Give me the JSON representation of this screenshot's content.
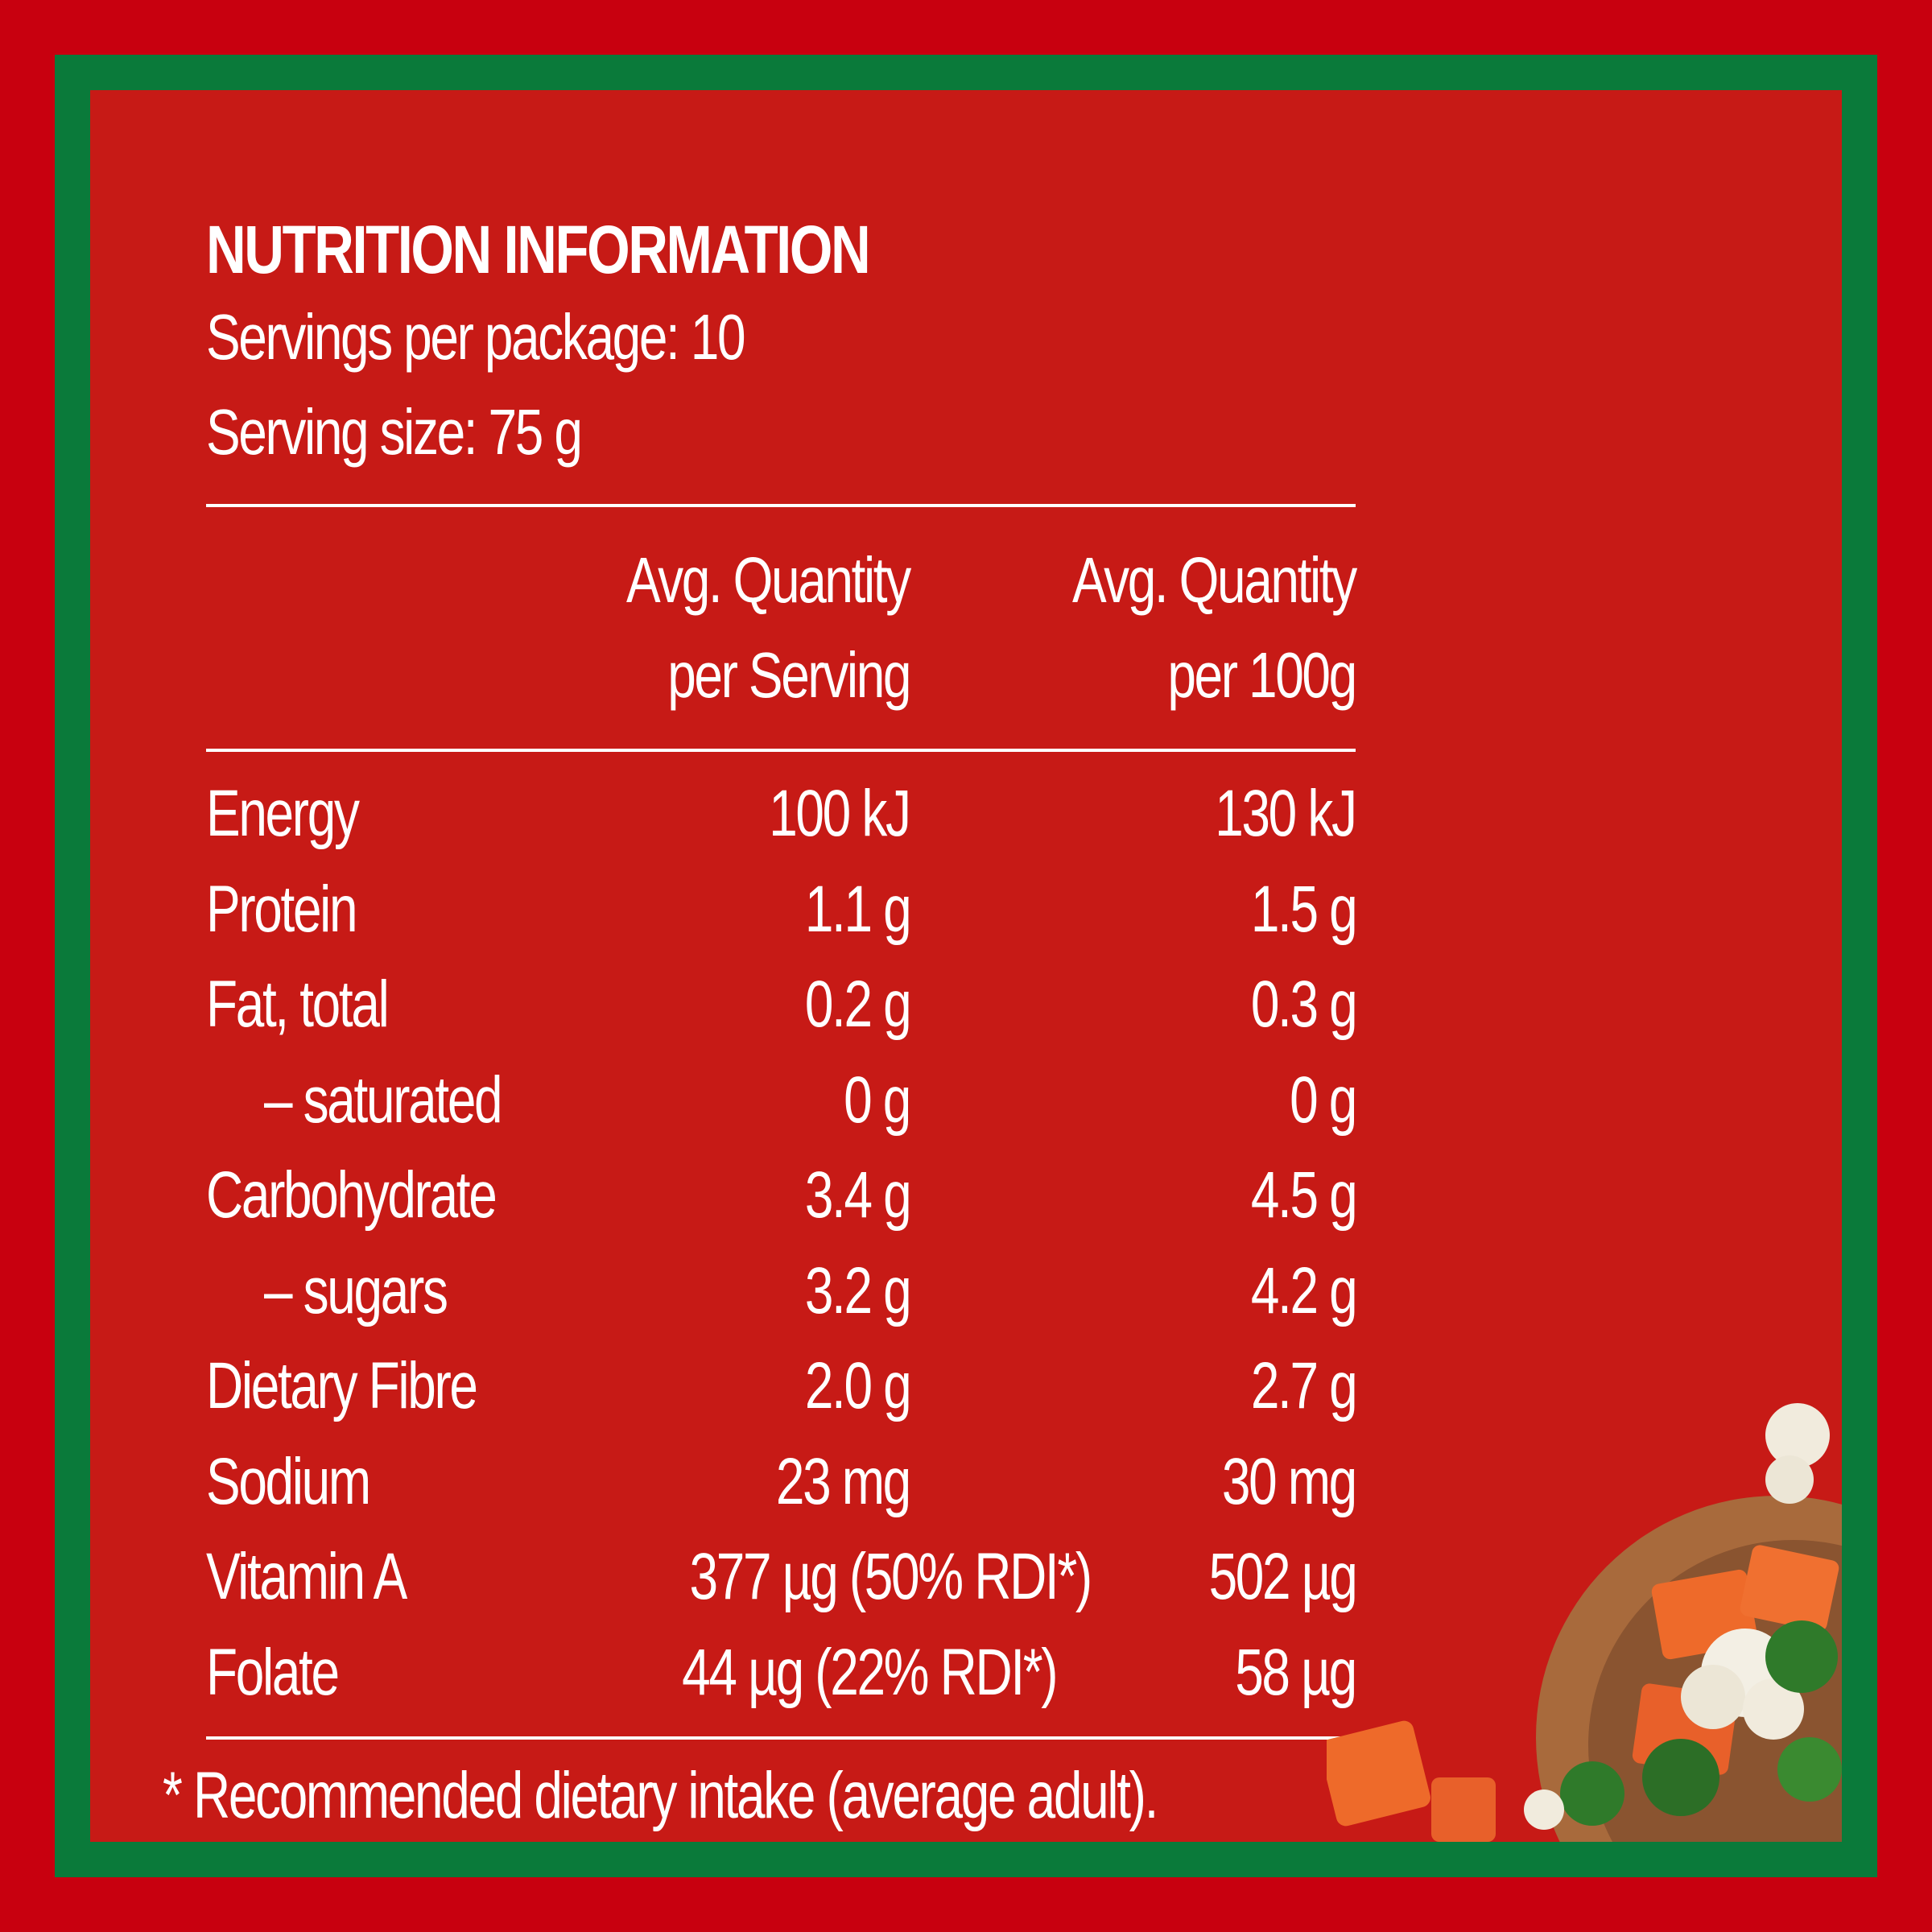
{
  "panel": {
    "title": "NUTRITION INFORMATION",
    "servings_per_package": "Servings per package: 10",
    "serving_size": "Serving size: 75 g"
  },
  "columns": {
    "per_serving_line1": "Avg. Quantity",
    "per_serving_line2": "per Serving",
    "per_100g_line1": "Avg. Quantity",
    "per_100g_line2": "per 100g"
  },
  "rows": [
    {
      "label": "Energy",
      "per_serving": "100 kJ",
      "per_100g": "130 kJ"
    },
    {
      "label": "Protein",
      "per_serving": "1.1 g",
      "per_100g": "1.5 g"
    },
    {
      "label": "Fat, total",
      "per_serving": "0.2 g",
      "per_100g": "0.3 g"
    },
    {
      "label": "– saturated",
      "per_serving": "0 g",
      "per_100g": "0 g"
    },
    {
      "label": "Carbohydrate",
      "per_serving": "3.4 g",
      "per_100g": "4.5 g"
    },
    {
      "label": "– sugars",
      "per_serving": "3.2 g",
      "per_100g": "4.2 g"
    },
    {
      "label": "Dietary Fibre",
      "per_serving": "2.0 g",
      "per_100g": "2.7 g"
    },
    {
      "label": "Sodium",
      "per_serving": "23 mg",
      "per_100g": "30 mg"
    },
    {
      "label": "Vitamin A",
      "per_serving": "377 µg (50% RDI*)",
      "per_100g": "502 µg"
    },
    {
      "label": "Folate",
      "per_serving": "44 µg (22% RDI*)",
      "per_100g": "58 µg"
    }
  ],
  "footnote": "* Recommended dietary intake (average adult).",
  "colors": {
    "outer_red": "#c8000f",
    "frame_green": "#0a7a3a",
    "panel_red": "#c71a16",
    "text": "#ffffff"
  },
  "decor": "bowl-of-vegetables-image"
}
